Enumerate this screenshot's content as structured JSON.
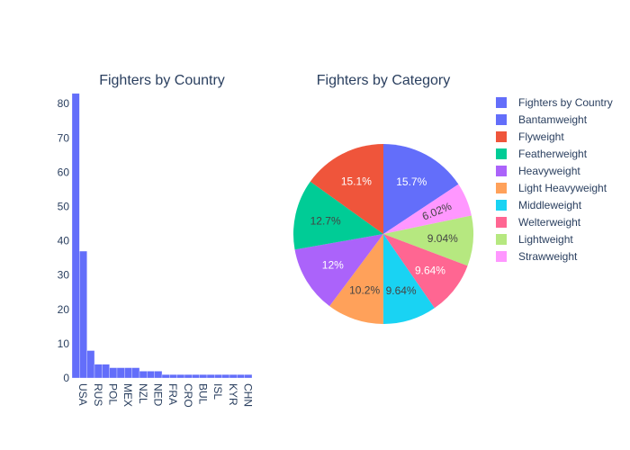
{
  "chart_data": [
    {
      "type": "bar",
      "title": "Fighters by Country",
      "xlabel": "",
      "ylabel": "",
      "ylim": [
        0,
        84
      ],
      "yticks": [
        0,
        10,
        20,
        30,
        40,
        50,
        60,
        70,
        80
      ],
      "legend_label": "Fighters by Country",
      "color": "#636efa",
      "categories": [
        "USA",
        "",
        "RUS",
        "",
        "POL",
        "",
        "MEX",
        "",
        "NZL",
        "",
        "NED",
        "",
        "FRA",
        "",
        "CRO",
        "",
        "BUL",
        "",
        "ISL",
        "",
        "KYR",
        "",
        "CHN",
        ""
      ],
      "values": [
        83,
        37,
        8,
        4,
        4,
        3,
        3,
        3,
        3,
        2,
        2,
        2,
        1,
        1,
        1,
        1,
        1,
        1,
        1,
        1,
        1,
        1,
        1,
        1
      ]
    },
    {
      "type": "pie",
      "title": "Fighters by Category",
      "slices": [
        {
          "label": "Bantamweight",
          "percent": 15.7,
          "text": "15.7%",
          "color": "#636efa"
        },
        {
          "label": "Welterweight",
          "percent": 9.64,
          "text": "9.64%",
          "color": "#ff6692"
        },
        {
          "label": "Middleweight",
          "percent": 9.64,
          "text": "9.64%",
          "color": "#19d3f3"
        },
        {
          "label": "Lightweight",
          "percent": 9.04,
          "text": "9.04%",
          "color": "#b6e880"
        },
        {
          "label": "Strawweight",
          "percent": 6.02,
          "text": "6.02%",
          "color": "#ff97ff"
        },
        {
          "label": "Light Heavyweight",
          "percent": 10.2,
          "text": "10.2%",
          "color": "#ffa15a"
        },
        {
          "label": "Heavyweight",
          "percent": 12,
          "text": "12%",
          "color": "#ab63fa"
        },
        {
          "label": "Featherweight",
          "percent": 12.7,
          "text": "12.7%",
          "color": "#00cc96"
        },
        {
          "label": "Flyweight",
          "percent": 15.1,
          "text": "15.1%",
          "color": "#ef553b"
        }
      ],
      "draw_order": [
        "Bantamweight",
        "Strawweight",
        "Lightweight",
        "Welterweight",
        "Middleweight",
        "Light Heavyweight",
        "Heavyweight",
        "Featherweight",
        "Flyweight"
      ],
      "legend_order": [
        "Bantamweight",
        "Flyweight",
        "Featherweight",
        "Heavyweight",
        "Light Heavyweight",
        "Middleweight",
        "Welterweight",
        "Lightweight",
        "Strawweight"
      ]
    }
  ],
  "legend": {
    "placement": "top-right",
    "entries": [
      {
        "label": "Fighters by Country",
        "color": "#636efa"
      },
      {
        "label": "Bantamweight",
        "color": "#636efa"
      },
      {
        "label": "Flyweight",
        "color": "#ef553b"
      },
      {
        "label": "Featherweight",
        "color": "#00cc96"
      },
      {
        "label": "Heavyweight",
        "color": "#ab63fa"
      },
      {
        "label": "Light Heavyweight",
        "color": "#ffa15a"
      },
      {
        "label": "Middleweight",
        "color": "#19d3f3"
      },
      {
        "label": "Welterweight",
        "color": "#ff6692"
      },
      {
        "label": "Lightweight",
        "color": "#b6e880"
      },
      {
        "label": "Strawweight",
        "color": "#ff97ff"
      }
    ]
  }
}
